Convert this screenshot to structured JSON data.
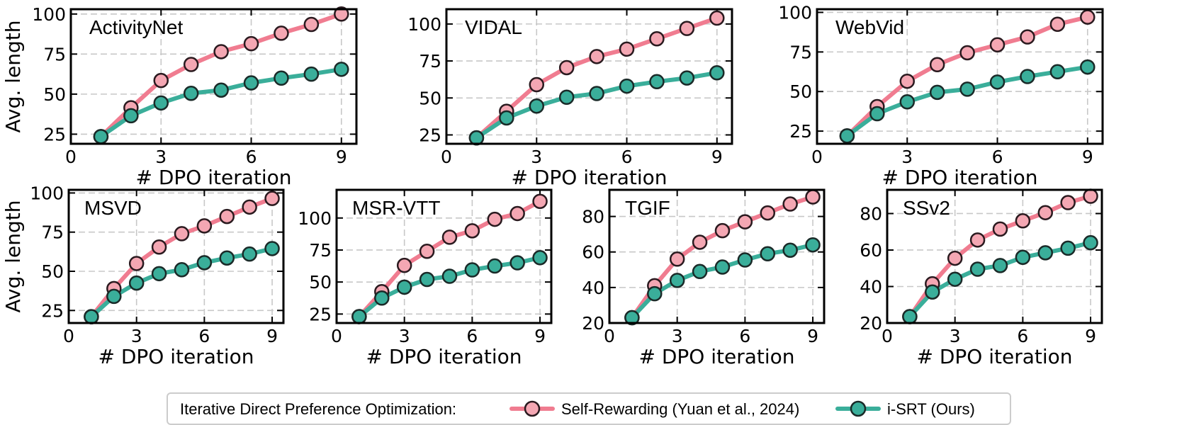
{
  "legend": {
    "prefix": "Iterative Direct Preference Optimization:",
    "entries": [
      "Self-Rewarding (Yuan et al., 2024)",
      "i-SRT (Ours)"
    ]
  },
  "colors": {
    "self_rewarding": "#F07C90",
    "isrt": "#3AAE9A",
    "marker_self_rewarding": "#F4A7B3",
    "marker_isrt": "#5FB8AA"
  },
  "chart_data": [
    {
      "type": "line",
      "title": "ActivityNet",
      "xlabel": "# DPO iteration",
      "ylabel": "Avg. length",
      "xlim": [
        0,
        9.5
      ],
      "ylim": [
        19,
        103
      ],
      "xticks": [
        0,
        3,
        6,
        9
      ],
      "yticks": [
        25,
        50,
        75,
        100
      ],
      "grid": true,
      "x": [
        1,
        2,
        3,
        4,
        5,
        6,
        7,
        8,
        9
      ],
      "series": [
        {
          "name": "Self-Rewarding (Yuan et al., 2024)",
          "values": [
            23.5,
            41.5,
            58.5,
            68.5,
            76.5,
            81.5,
            88,
            93.5,
            100
          ]
        },
        {
          "name": "i-SRT (Ours)",
          "values": [
            23.5,
            36.5,
            44.5,
            50.5,
            52.5,
            57,
            60,
            62.5,
            65.5
          ]
        }
      ]
    },
    {
      "type": "line",
      "title": "VIDAL",
      "xlabel": "# DPO iteration",
      "ylabel": "",
      "xlim": [
        0,
        9.5
      ],
      "ylim": [
        19,
        110
      ],
      "xticks": [
        0,
        3,
        6,
        9
      ],
      "yticks": [
        25,
        50,
        75,
        100
      ],
      "grid": true,
      "x": [
        1,
        2,
        3,
        4,
        5,
        6,
        7,
        8,
        9
      ],
      "series": [
        {
          "name": "Self-Rewarding (Yuan et al., 2024)",
          "values": [
            23,
            41,
            59,
            70.5,
            78,
            83,
            90,
            97,
            104
          ]
        },
        {
          "name": "i-SRT (Ours)",
          "values": [
            23,
            36.5,
            44.5,
            50.5,
            53,
            58,
            61,
            63.5,
            67
          ]
        }
      ]
    },
    {
      "type": "line",
      "title": "WebVid",
      "xlabel": "# DPO iteration",
      "ylabel": "",
      "xlim": [
        0,
        9.5
      ],
      "ylim": [
        17,
        102
      ],
      "xticks": [
        0,
        3,
        6,
        9
      ],
      "yticks": [
        25,
        50,
        75,
        100
      ],
      "grid": true,
      "x": [
        1,
        2,
        3,
        4,
        5,
        6,
        7,
        8,
        9
      ],
      "series": [
        {
          "name": "Self-Rewarding (Yuan et al., 2024)",
          "values": [
            22,
            40.5,
            56.5,
            67,
            74.5,
            79.5,
            84.5,
            92.5,
            97
          ]
        },
        {
          "name": "i-SRT (Ours)",
          "values": [
            22,
            36,
            43.5,
            49.5,
            51.5,
            56,
            59.5,
            62.5,
            65.5
          ]
        }
      ]
    },
    {
      "type": "line",
      "title": "MSVD",
      "xlabel": "# DPO iteration",
      "ylabel": "Avg. length",
      "xlim": [
        0,
        9.5
      ],
      "ylim": [
        17,
        102
      ],
      "xticks": [
        0,
        3,
        6,
        9
      ],
      "yticks": [
        25,
        50,
        75,
        100
      ],
      "grid": true,
      "x": [
        1,
        2,
        3,
        4,
        5,
        6,
        7,
        8,
        9
      ],
      "series": [
        {
          "name": "Self-Rewarding (Yuan et al., 2024)",
          "values": [
            21,
            39,
            55,
            65.5,
            74,
            79,
            85,
            91,
            96.5
          ]
        },
        {
          "name": "i-SRT (Ours)",
          "values": [
            21,
            34,
            42.5,
            48.5,
            51,
            55.5,
            58.5,
            61,
            64.5
          ]
        }
      ]
    },
    {
      "type": "line",
      "title": "MSR-VTT",
      "xlabel": "# DPO iteration",
      "ylabel": "",
      "xlim": [
        0,
        9.5
      ],
      "ylim": [
        18,
        122
      ],
      "xticks": [
        0,
        3,
        6,
        9
      ],
      "yticks": [
        25,
        50,
        75,
        100
      ],
      "grid": true,
      "x": [
        1,
        2,
        3,
        4,
        5,
        6,
        7,
        8,
        9
      ],
      "series": [
        {
          "name": "Self-Rewarding (Yuan et al., 2024)",
          "values": [
            23,
            42.5,
            63,
            74,
            85,
            90,
            99,
            103.5,
            113
          ]
        },
        {
          "name": "i-SRT (Ours)",
          "values": [
            23,
            37.5,
            46,
            52,
            54.5,
            59.5,
            62.5,
            65,
            69
          ]
        }
      ]
    },
    {
      "type": "line",
      "title": "TGIF",
      "xlabel": "# DPO iteration",
      "ylabel": "",
      "xlim": [
        0,
        9.5
      ],
      "ylim": [
        20,
        95
      ],
      "xticks": [
        0,
        3,
        6,
        9
      ],
      "yticks": [
        20,
        40,
        60,
        80
      ],
      "grid": true,
      "x": [
        1,
        2,
        3,
        4,
        5,
        6,
        7,
        8,
        9
      ],
      "series": [
        {
          "name": "Self-Rewarding (Yuan et al., 2024)",
          "values": [
            23,
            41,
            56,
            65.5,
            72,
            77,
            82,
            87,
            91
          ]
        },
        {
          "name": "i-SRT (Ours)",
          "values": [
            23,
            36.5,
            44,
            49,
            51.5,
            55.5,
            59,
            61,
            64
          ]
        }
      ]
    },
    {
      "type": "line",
      "title": "SSv2",
      "xlabel": "# DPO iteration",
      "ylabel": "",
      "xlim": [
        0,
        9.5
      ],
      "ylim": [
        20,
        93
      ],
      "xticks": [
        0,
        3,
        6,
        9
      ],
      "yticks": [
        20,
        40,
        60,
        80
      ],
      "grid": true,
      "x": [
        1,
        2,
        3,
        4,
        5,
        6,
        7,
        8,
        9
      ],
      "series": [
        {
          "name": "Self-Rewarding (Yuan et al., 2024)",
          "values": [
            23.5,
            41.5,
            55.5,
            65.5,
            71.5,
            76,
            80.5,
            86,
            89.5
          ]
        },
        {
          "name": "i-SRT (Ours)",
          "values": [
            23.5,
            37,
            44,
            49.5,
            51.5,
            56,
            58.5,
            61,
            64
          ]
        }
      ]
    }
  ]
}
